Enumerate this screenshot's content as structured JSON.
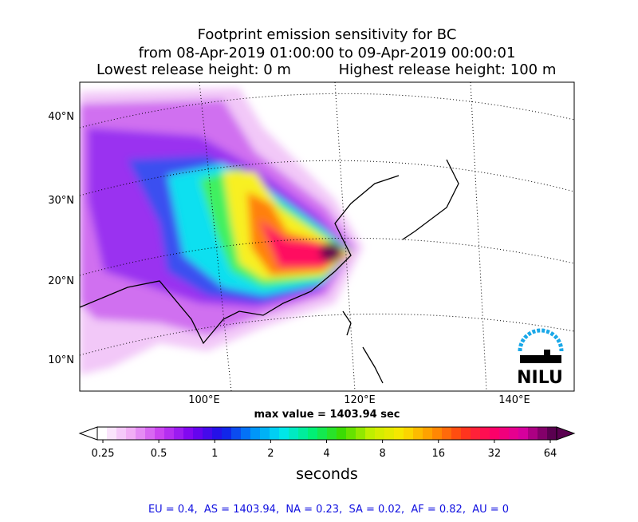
{
  "title": {
    "line1": "Footprint emission sensitivity for BC",
    "line2": "from 08-Apr-2019 01:00:00 to 09-Apr-2019 00:00:01",
    "line3_left": "Lowest release height: 0 m",
    "line3_right": "Highest release height: 100 m"
  },
  "map": {
    "lat_labels": [
      "40°N",
      "30°N",
      "20°N",
      "10°N"
    ],
    "lon_labels": [
      "100°E",
      "120°E",
      "140°E"
    ],
    "max_value_text": "max value = 1403.94 sec",
    "logo": "NILU"
  },
  "colorbar": {
    "ticks": [
      0.25,
      0.5,
      1,
      2,
      4,
      8,
      16,
      32,
      64
    ],
    "log_scale": true,
    "label": "seconds"
  },
  "footer": "EU = 0.4,  AS = 1403.94,  NA = 0.23,  SA = 0.02,  AF = 0.82,  AU = 0"
}
